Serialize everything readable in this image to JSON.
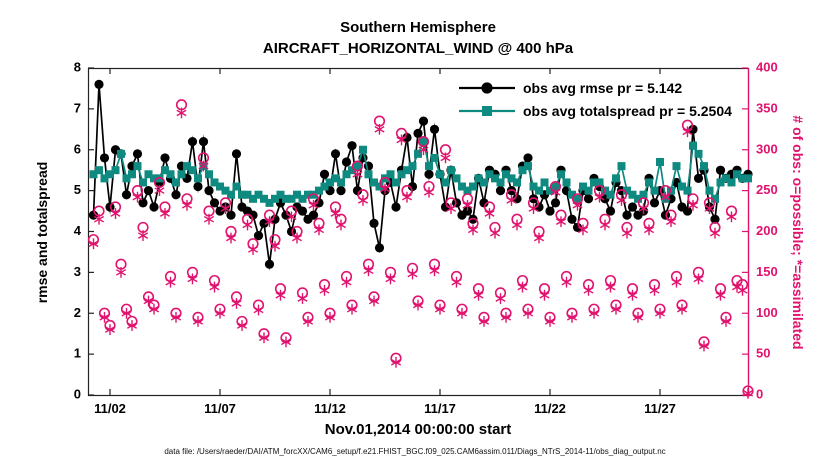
{
  "title": {
    "line1": "Southern Hemisphere",
    "line2": "AIRCRAFT_HORIZONTAL_WIND @ 400 hPa"
  },
  "axes": {
    "ylabel_left": "rmse and totalspread",
    "ylabel_right": "# of obs: o=possible; *=assimilated",
    "xlabel": "Nov.01,2014 00:00:00 start"
  },
  "legend": [
    {
      "label": "obs avg rmse pr = 5.142",
      "color": "#000000",
      "marker": "filled-circle"
    },
    {
      "label": "obs avg totalspread pr = 5.2504",
      "color": "#0f8a80",
      "marker": "filled-square"
    }
  ],
  "footer": "data file: /Users/raeder/DAI/ATM_forcXX/CAM6_setup/f.e21.FHIST_BGC.f09_025.CAM6assim.011/Diags_NTrS_2014-11/obs_diag_output.nc",
  "colors": {
    "rmse": "#000000",
    "spread": "#0f8a80",
    "obs": "#e0136e",
    "axis": "#222222"
  },
  "chart_data": {
    "type": "line+scatter",
    "x": {
      "start_day": 0.25,
      "step_days": 0.25,
      "count": 120,
      "units": "days since Nov.01,2014 00:00"
    },
    "xlim": [
      0,
      30
    ],
    "ylim_left": [
      0,
      8
    ],
    "ylim_right": [
      0,
      400
    ],
    "xticks": [
      {
        "pos": 1,
        "label": "11/02"
      },
      {
        "pos": 6,
        "label": "11/07"
      },
      {
        "pos": 11,
        "label": "11/12"
      },
      {
        "pos": 16,
        "label": "11/17"
      },
      {
        "pos": 21,
        "label": "11/22"
      },
      {
        "pos": 26,
        "label": "11/27"
      }
    ],
    "yticks_left": [
      0,
      1,
      2,
      3,
      4,
      5,
      6,
      7,
      8
    ],
    "yticks_right": [
      0,
      50,
      100,
      150,
      200,
      250,
      300,
      350,
      400
    ],
    "grid": false,
    "legend_position": "top-right-inside",
    "series": [
      {
        "name": "obs avg rmse",
        "axis": "left",
        "marker": "filled-circle",
        "line": true,
        "color": "#000000",
        "values": [
          4.4,
          7.6,
          5.8,
          4.6,
          6.0,
          5.9,
          4.9,
          5.6,
          5.9,
          4.7,
          5.0,
          4.6,
          5.2,
          5.8,
          5.3,
          4.9,
          5.6,
          5.3,
          6.2,
          5.1,
          6.2,
          5.0,
          4.7,
          4.5,
          4.6,
          4.4,
          5.9,
          4.6,
          4.5,
          4.4,
          3.9,
          4.2,
          3.2,
          4.3,
          4.7,
          4.4,
          4.0,
          4.6,
          4.5,
          4.3,
          4.4,
          4.7,
          5.4,
          5.0,
          5.9,
          5.0,
          5.7,
          6.1,
          5.0,
          5.8,
          5.6,
          4.2,
          3.6,
          5.0,
          5.2,
          4.6,
          5.5,
          6.3,
          5.1,
          6.4,
          6.7,
          5.4,
          6.5,
          5.4,
          4.6,
          5.5,
          4.7,
          4.4,
          4.5,
          4.3,
          5.3,
          4.7,
          5.5,
          5.4,
          5.0,
          5.5,
          5.0,
          4.8,
          5.6,
          5.8,
          4.8,
          4.6,
          4.9,
          4.5,
          4.7,
          5.5,
          5.0,
          4.3,
          4.1,
          5.0,
          4.8,
          5.3,
          5.1,
          4.8,
          4.5,
          5.2,
          5.0,
          4.4,
          4.6,
          4.4,
          4.5,
          5.3,
          4.7,
          5.0,
          4.4,
          4.8,
          5.2,
          4.6,
          4.5,
          6.5,
          5.3,
          5.5,
          4.6,
          4.3,
          5.5,
          5.3,
          5.4,
          5.5,
          5.3,
          5.4
        ]
      },
      {
        "name": "obs avg totalspread",
        "axis": "left",
        "marker": "filled-square",
        "line": true,
        "color": "#0f8a80",
        "values": [
          5.4,
          5.5,
          5.3,
          5.4,
          5.5,
          5.9,
          5.3,
          5.4,
          5.6,
          5.2,
          5.4,
          5.3,
          5.3,
          5.5,
          5.4,
          5.2,
          5.4,
          5.6,
          5.5,
          5.3,
          5.6,
          5.4,
          5.2,
          5.1,
          5.0,
          4.9,
          5.1,
          4.9,
          4.9,
          4.8,
          4.9,
          4.8,
          4.7,
          4.8,
          4.9,
          4.8,
          4.8,
          4.9,
          4.8,
          4.9,
          4.9,
          5.0,
          5.1,
          5.2,
          5.3,
          5.2,
          5.4,
          5.5,
          5.6,
          6.0,
          5.4,
          5.2,
          5.1,
          5.3,
          5.4,
          5.2,
          5.4,
          5.5,
          5.6,
          5.9,
          6.2,
          5.6,
          5.8,
          5.4,
          5.2,
          5.5,
          5.3,
          5.1,
          5.0,
          5.1,
          5.3,
          5.2,
          5.4,
          5.3,
          5.2,
          5.4,
          5.3,
          5.2,
          5.5,
          5.6,
          5.1,
          5.0,
          5.2,
          5.0,
          5.1,
          5.4,
          5.2,
          4.9,
          4.8,
          5.1,
          5.0,
          5.2,
          5.2,
          5.0,
          4.9,
          5.3,
          5.6,
          5.0,
          4.9,
          4.8,
          4.9,
          5.2,
          5.0,
          5.7,
          4.8,
          5.0,
          5.6,
          5.1,
          5.0,
          6.1,
          5.9,
          5.6,
          5.0,
          4.8,
          5.2,
          5.3,
          5.2,
          5.4,
          5.3,
          5.3
        ]
      },
      {
        "name": "# of obs possible",
        "axis": "right",
        "marker": "open-circle",
        "line": false,
        "color": "#e0136e",
        "values": [
          190,
          225,
          100,
          85,
          230,
          160,
          105,
          90,
          250,
          205,
          120,
          110,
          260,
          230,
          145,
          100,
          355,
          240,
          150,
          95,
          290,
          225,
          140,
          105,
          235,
          200,
          120,
          90,
          215,
          185,
          110,
          75,
          220,
          190,
          130,
          70,
          225,
          200,
          125,
          95,
          240,
          210,
          135,
          100,
          230,
          215,
          145,
          110,
          280,
          245,
          160,
          120,
          335,
          260,
          150,
          45,
          320,
          250,
          155,
          115,
          310,
          255,
          160,
          110,
          300,
          235,
          145,
          105,
          240,
          210,
          130,
          95,
          230,
          205,
          125,
          100,
          245,
          215,
          140,
          105,
          235,
          200,
          130,
          95,
          255,
          220,
          145,
          100,
          240,
          210,
          135,
          105,
          250,
          215,
          140,
          110,
          245,
          205,
          130,
          100,
          235,
          210,
          135,
          105,
          250,
          220,
          145,
          110,
          330,
          240,
          150,
          65,
          235,
          205,
          130,
          95,
          225,
          140,
          135,
          5
        ]
      },
      {
        "name": "# of obs assimilated",
        "axis": "right",
        "marker": "asterisk",
        "line": false,
        "color": "#e0136e",
        "values": [
          185,
          215,
          95,
          80,
          222,
          150,
          100,
          85,
          242,
          195,
          115,
          105,
          250,
          222,
          138,
          95,
          345,
          232,
          142,
          90,
          280,
          215,
          132,
          100,
          228,
          192,
          112,
          85,
          208,
          178,
          104,
          70,
          212,
          182,
          122,
          65,
          218,
          192,
          118,
          90,
          232,
          202,
          128,
          95,
          222,
          208,
          138,
          105,
          270,
          238,
          152,
          115,
          325,
          252,
          142,
          40,
          312,
          242,
          148,
          110,
          300,
          248,
          152,
          105,
          290,
          228,
          138,
          100,
          232,
          202,
          122,
          90,
          222,
          198,
          118,
          95,
          238,
          208,
          132,
          100,
          228,
          192,
          122,
          90,
          248,
          212,
          138,
          95,
          232,
          202,
          128,
          100,
          242,
          208,
          132,
          105,
          238,
          198,
          122,
          95,
          228,
          202,
          128,
          100,
          242,
          212,
          138,
          105,
          322,
          232,
          142,
          60,
          228,
          198,
          122,
          90,
          218,
          132,
          128,
          2
        ]
      }
    ]
  }
}
